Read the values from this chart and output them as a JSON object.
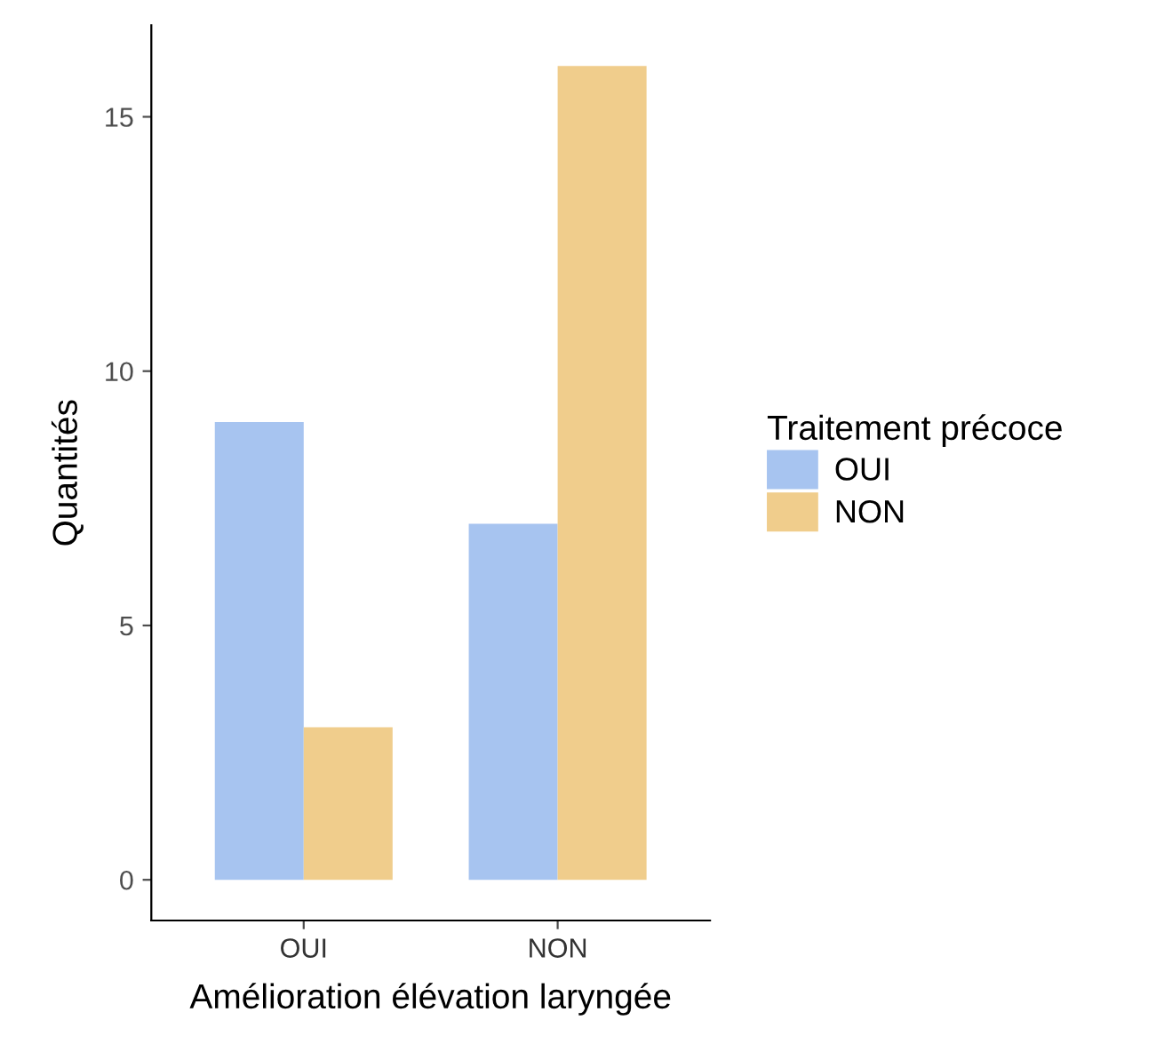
{
  "chart_data": {
    "type": "bar",
    "xlabel": "Amélioration élévation laryngée",
    "ylabel": "Quantités",
    "legend_title": "Traitement précoce",
    "categories": [
      "OUI",
      "NON"
    ],
    "series": [
      {
        "name": "OUI",
        "color": "#a7c4f0",
        "values": [
          9,
          7
        ]
      },
      {
        "name": "NON",
        "color": "#f0cd8c",
        "values": [
          3,
          16
        ]
      }
    ],
    "ylim": [
      -0.8,
      16.8
    ],
    "yticks": [
      0,
      5,
      10,
      15
    ],
    "grid": false,
    "legend": "right"
  }
}
